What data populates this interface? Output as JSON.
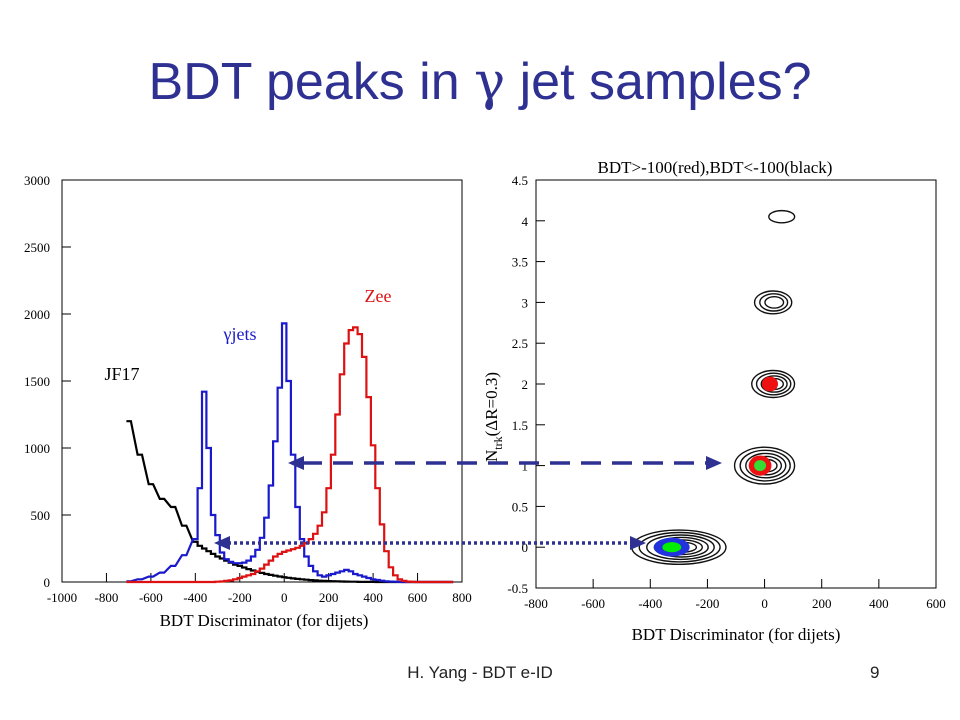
{
  "slide": {
    "title_pre": "BDT peaks in ",
    "title_symbol": "γ",
    "title_post": " jet samples?",
    "footer_author": "H. Yang - BDT e-ID",
    "page_number": "9"
  },
  "chart_data": [
    {
      "type": "line",
      "xlabel": "BDT Discriminator (for dijets)",
      "ylabel": "",
      "xlim": [
        -1000,
        800
      ],
      "ylim": [
        0,
        3000
      ],
      "xticks": [
        -1000,
        -800,
        -600,
        -400,
        -200,
        0,
        200,
        400,
        600,
        800
      ],
      "yticks": [
        0,
        500,
        1000,
        1500,
        2000,
        2500,
        3000
      ],
      "grid": false,
      "x": [
        -700,
        -650,
        -600,
        -550,
        -500,
        -450,
        -400,
        -380,
        -360,
        -340,
        -320,
        -300,
        -280,
        -260,
        -240,
        -220,
        -200,
        -180,
        -160,
        -140,
        -120,
        -100,
        -80,
        -60,
        -40,
        -20,
        0,
        20,
        40,
        60,
        80,
        100,
        120,
        140,
        160,
        180,
        200,
        220,
        240,
        260,
        280,
        300,
        320,
        340,
        360,
        380,
        400,
        420,
        440,
        460,
        480,
        500,
        520,
        540,
        560,
        580,
        600,
        650,
        700,
        750
      ],
      "series": [
        {
          "name": "JF17",
          "color": "#000000",
          "values": [
            1200,
            950,
            730,
            620,
            560,
            420,
            300,
            270,
            250,
            230,
            210,
            190,
            175,
            160,
            145,
            130,
            120,
            108,
            96,
            86,
            76,
            68,
            60,
            53,
            47,
            41,
            36,
            31,
            27,
            23,
            20,
            17,
            14,
            12,
            10,
            8,
            7,
            6,
            5,
            4,
            3,
            2,
            2,
            1,
            1,
            1,
            1,
            0,
            0,
            0,
            0,
            0,
            0,
            0,
            0,
            0,
            0,
            0,
            0,
            0
          ]
        },
        {
          "name": "γjets",
          "color": "#1a1acc",
          "values": [
            5,
            20,
            40,
            70,
            120,
            200,
            320,
            700,
            1420,
            1000,
            500,
            350,
            220,
            170,
            150,
            140,
            140,
            145,
            160,
            190,
            240,
            330,
            480,
            720,
            1050,
            1450,
            1930,
            1500,
            950,
            560,
            320,
            190,
            120,
            80,
            50,
            40,
            50,
            60,
            70,
            80,
            90,
            80,
            60,
            50,
            40,
            30,
            20,
            15,
            10,
            5,
            3,
            2,
            1,
            0,
            0,
            0,
            0,
            0,
            0,
            0
          ]
        },
        {
          "name": "Zee",
          "color": "#dd1111",
          "values": [
            0,
            0,
            0,
            0,
            0,
            0,
            0,
            0,
            0,
            0,
            0,
            2,
            4,
            8,
            12,
            20,
            30,
            40,
            50,
            60,
            80,
            100,
            130,
            160,
            190,
            210,
            225,
            235,
            245,
            255,
            270,
            290,
            320,
            360,
            420,
            520,
            700,
            950,
            1250,
            1550,
            1780,
            1880,
            1900,
            1850,
            1680,
            1380,
            1020,
            700,
            430,
            230,
            110,
            50,
            20,
            8,
            3,
            1,
            0,
            0,
            0,
            0
          ]
        }
      ]
    },
    {
      "type": "scatter",
      "title": "BDT>-100(red),BDT<-100(black)",
      "xlabel": "BDT Discriminator (for dijets)",
      "ylabel": "N_trk(ΔR=0.3)",
      "ylabel_main": "N",
      "ylabel_sub": "trk",
      "ylabel_rest": "(ΔR=0.3)",
      "xlim": [
        -800,
        600
      ],
      "ylim": [
        -0.5,
        4.5
      ],
      "xticks": [
        -800,
        -600,
        -400,
        -200,
        0,
        200,
        400,
        600
      ],
      "yticks": [
        -0.5,
        0,
        0.5,
        1,
        1.5,
        2,
        2.5,
        3,
        3.5,
        4,
        4.5
      ],
      "ytick_labels": [
        "-0.5",
        "0",
        "0.5",
        "1",
        "1.5",
        "2",
        "2.5",
        "3",
        "3.5",
        "4",
        "4.5"
      ],
      "grid": false,
      "contours": [
        {
          "x": -300,
          "y": 0,
          "width": 330,
          "height": 0.42,
          "levels": 6,
          "core": "#2233dd",
          "peak": "#00ee00"
        },
        {
          "x": 0,
          "y": 1,
          "width": 210,
          "height": 0.45,
          "levels": 5,
          "core": "#ee1111",
          "peak": "#33dd33"
        },
        {
          "x": 30,
          "y": 2,
          "width": 150,
          "height": 0.33,
          "levels": 4,
          "core": "#ee1111",
          "peak": "#ee1111"
        },
        {
          "x": 30,
          "y": 3,
          "width": 130,
          "height": 0.28,
          "levels": 3,
          "core": "#ffffff",
          "peak": "#ffffff"
        },
        {
          "x": 60,
          "y": 4.05,
          "width": 90,
          "height": 0.15,
          "levels": 1,
          "core": "#ffffff",
          "peak": "#ffffff"
        }
      ]
    }
  ],
  "arrows": {
    "color": "#2e3192"
  }
}
